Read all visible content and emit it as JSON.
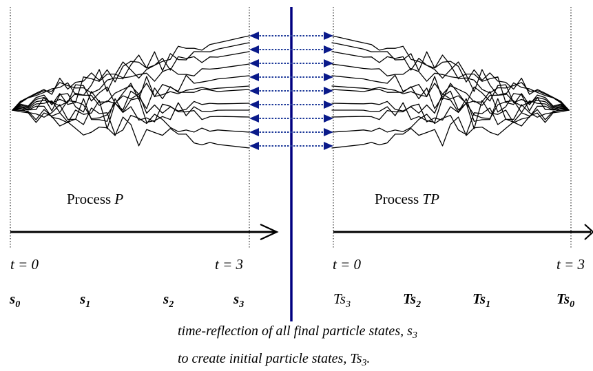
{
  "left_process": {
    "label_prefix": "Process ",
    "label_italic": "P",
    "time_start": "t = 0",
    "time_end": "t = 3",
    "states": [
      {
        "base": "s",
        "sub": "0"
      },
      {
        "base": "s",
        "sub": "1"
      },
      {
        "base": "s",
        "sub": "2"
      },
      {
        "base": "s",
        "sub": "3"
      }
    ]
  },
  "right_process": {
    "label_prefix": "Process ",
    "label_italic": "TP",
    "time_start": "t = 0",
    "time_end": "t = 3",
    "states": [
      {
        "base": "Ts",
        "sub": "3"
      },
      {
        "base": "Ts",
        "sub": "2"
      },
      {
        "base": "Ts",
        "sub": "1"
      },
      {
        "base": "Ts",
        "sub": "0"
      }
    ]
  },
  "caption": {
    "line1_text": "time-reflection of all final particle states, s",
    "line1_sub": "3",
    "line2_text": "to create initial particle states, Ts",
    "line2_sub": "3",
    "line2_end": "."
  },
  "reflection_links_count": 9
}
